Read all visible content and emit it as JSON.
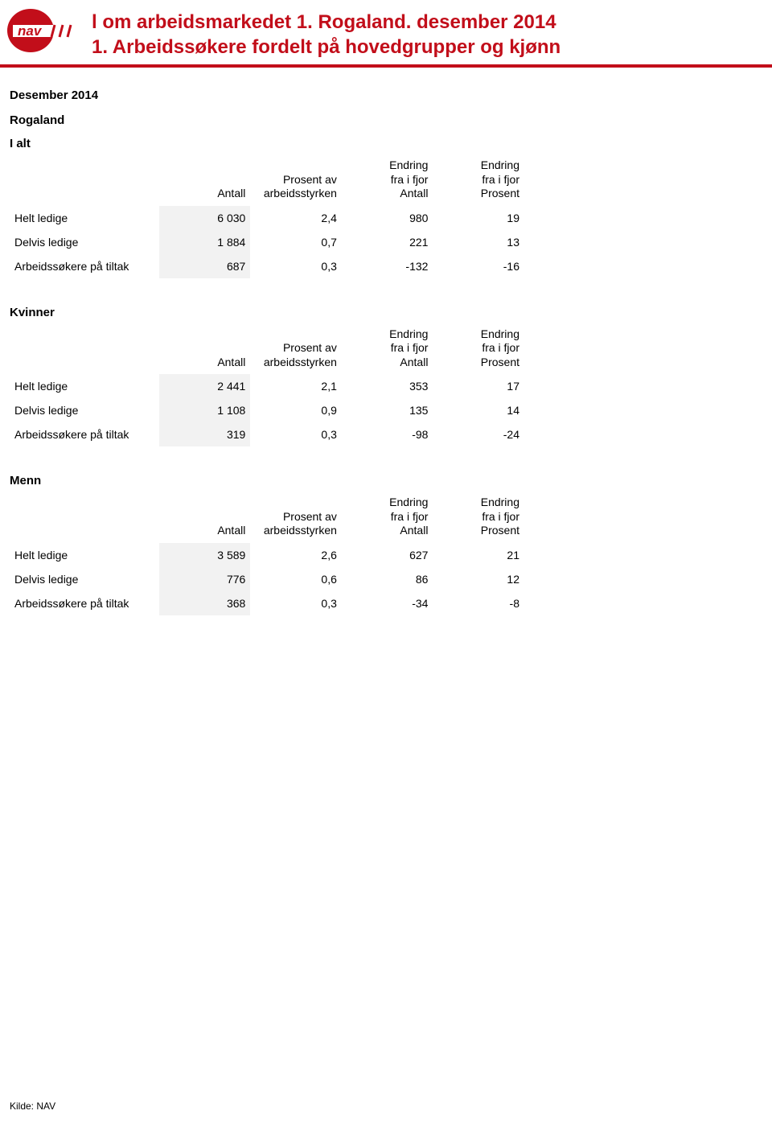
{
  "header": {
    "title_line1": "l om arbeidsmarkedet 1. Rogaland. desember 2014",
    "title_line2": "1. Arbeidssøkere fordelt på hovedgrupper og kjønn"
  },
  "period": "Desember 2014",
  "region": "Rogaland",
  "columns": {
    "c1": "Antall",
    "c2a": "Prosent av",
    "c2b": "arbeidsstyrken",
    "c3a": "Endring",
    "c3b": "fra i fjor",
    "c3c": "Antall",
    "c4a": "Endring",
    "c4b": "fra i fjor",
    "c4c": "Prosent"
  },
  "sections": [
    {
      "title": "I alt",
      "rows": [
        {
          "label": "Helt ledige",
          "antall": "6 030",
          "prosent_av": "2,4",
          "endr_antall": "980",
          "endr_prosent": "19"
        },
        {
          "label": "Delvis ledige",
          "antall": "1 884",
          "prosent_av": "0,7",
          "endr_antall": "221",
          "endr_prosent": "13"
        },
        {
          "label": "Arbeidssøkere på tiltak",
          "antall": "687",
          "prosent_av": "0,3",
          "endr_antall": "-132",
          "endr_prosent": "-16"
        }
      ]
    },
    {
      "title": "Kvinner",
      "rows": [
        {
          "label": "Helt ledige",
          "antall": "2 441",
          "prosent_av": "2,1",
          "endr_antall": "353",
          "endr_prosent": "17"
        },
        {
          "label": "Delvis ledige",
          "antall": "1 108",
          "prosent_av": "0,9",
          "endr_antall": "135",
          "endr_prosent": "14"
        },
        {
          "label": "Arbeidssøkere på tiltak",
          "antall": "319",
          "prosent_av": "0,3",
          "endr_antall": "-98",
          "endr_prosent": "-24"
        }
      ]
    },
    {
      "title": "Menn",
      "rows": [
        {
          "label": "Helt ledige",
          "antall": "3 589",
          "prosent_av": "2,6",
          "endr_antall": "627",
          "endr_prosent": "21"
        },
        {
          "label": "Delvis ledige",
          "antall": "776",
          "prosent_av": "0,6",
          "endr_antall": "86",
          "endr_prosent": "12"
        },
        {
          "label": "Arbeidssøkere på tiltak",
          "antall": "368",
          "prosent_av": "0,3",
          "endr_antall": "-34",
          "endr_prosent": "-8"
        }
      ]
    }
  ],
  "footer": "Kilde: NAV",
  "colors": {
    "brand_red": "#c20e1a",
    "row_shade": "#f2f2f2",
    "text": "#000000",
    "bg": "#ffffff"
  }
}
